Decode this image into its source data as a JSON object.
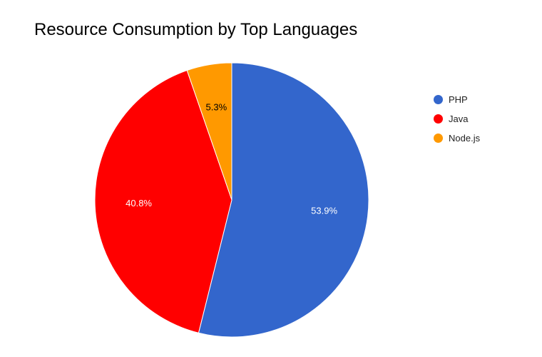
{
  "chart_data": {
    "type": "pie",
    "title": "Resource Consumption by Top Languages",
    "categories": [
      "PHP",
      "Java",
      "Node.js"
    ],
    "values": [
      53.9,
      40.8,
      5.3
    ],
    "value_labels": [
      "53.9%",
      "40.8%",
      "5.3%"
    ],
    "colors": [
      "#3366cc",
      "#ff0000",
      "#ff9900"
    ],
    "label_colors": [
      "#ffffff",
      "#ffffff",
      "#000000"
    ],
    "legend_position": "right"
  }
}
